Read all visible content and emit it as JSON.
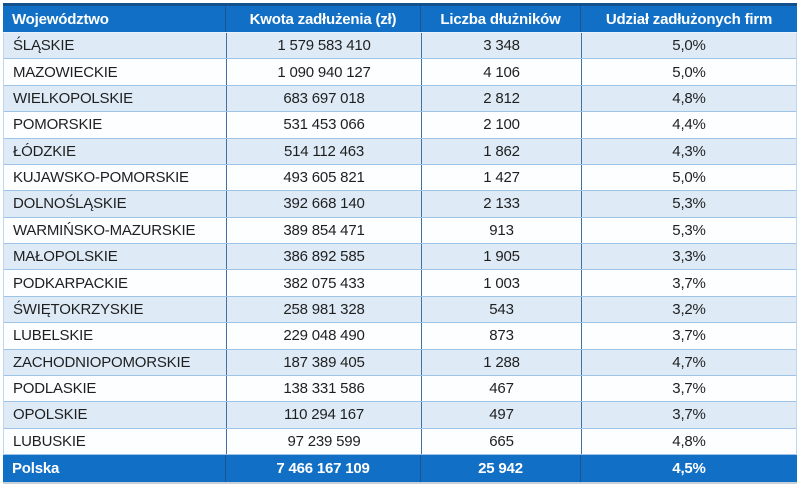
{
  "chart_data": {
    "type": "table",
    "columns": [
      "Województwo",
      "Kwota zadłużenia (zł)",
      "Liczba dłużników",
      "Udział zadłużonych firm"
    ],
    "rows": [
      [
        "ŚLĄSKIE",
        "1 579 583 410",
        "3 348",
        "5,0%"
      ],
      [
        "MAZOWIECKIE",
        "1 090 940 127",
        "4 106",
        "5,0%"
      ],
      [
        "WIELKOPOLSKIE",
        "683 697 018",
        "2 812",
        "4,8%"
      ],
      [
        "POMORSKIE",
        "531 453 066",
        "2 100",
        "4,4%"
      ],
      [
        "ŁÓDZKIE",
        "514 112 463",
        "1 862",
        "4,3%"
      ],
      [
        "KUJAWSKO-POMORSKIE",
        "493 605 821",
        "1 427",
        "5,0%"
      ],
      [
        "DOLNOŚLĄSKIE",
        "392 668 140",
        "2 133",
        "5,3%"
      ],
      [
        "WARMIŃSKO-MAZURSKIE",
        "389 854 471",
        "913",
        "5,3%"
      ],
      [
        "MAŁOPOLSKIE",
        "386 892 585",
        "1 905",
        "3,3%"
      ],
      [
        "PODKARPACKIE",
        "382 075 433",
        "1 003",
        "3,7%"
      ],
      [
        "ŚWIĘTOKRZYSKIE",
        "258 981 328",
        "543",
        "3,2%"
      ],
      [
        "LUBELSKIE",
        "229 048 490",
        "873",
        "3,7%"
      ],
      [
        "ZACHODNIOPOMORSKIE",
        "187 389 405",
        "1 288",
        "4,7%"
      ],
      [
        "PODLASKIE",
        "138 331 586",
        "467",
        "3,7%"
      ],
      [
        "OPOLSKIE",
        "110 294 167",
        "497",
        "3,7%"
      ],
      [
        "LUBUSKIE",
        "97 239 599",
        "665",
        "4,8%"
      ]
    ],
    "total_row": [
      "Polska",
      "7 466 167 109",
      "25 942",
      "4,5%"
    ]
  },
  "colors": {
    "header_bg": "#1170C5",
    "total_bg": "#1170C5",
    "header_text": "#FFFFFF",
    "body_text": "#1F1F1F",
    "row_bg": "#FDFEFF",
    "row_alt_bg": "#DEEBF7",
    "grid_h": "#9DC3E6",
    "grid_v": "#41719C",
    "grid_v_dark": "#1C5493",
    "table_top": "#12518E",
    "outer_light": "#BDD7EE",
    "bottom_shadow": "#C8CFD6"
  }
}
